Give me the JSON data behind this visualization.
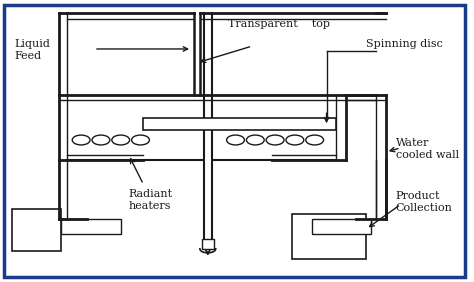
{
  "bg_color": "#ffffff",
  "border_color": "#1a3a8a",
  "line_color": "#1a1a1a",
  "labels": {
    "liquid_feed": "Liquid\nFeed",
    "transparent_top": "Transparent    top",
    "spinning_disc": "Spinning disc",
    "water_cooled": "Water\ncooled wall",
    "radiant_heaters": "Radiant\nheaters",
    "product_collection": "Product\nCollection"
  },
  "figsize": [
    4.74,
    2.82
  ],
  "dpi": 100
}
